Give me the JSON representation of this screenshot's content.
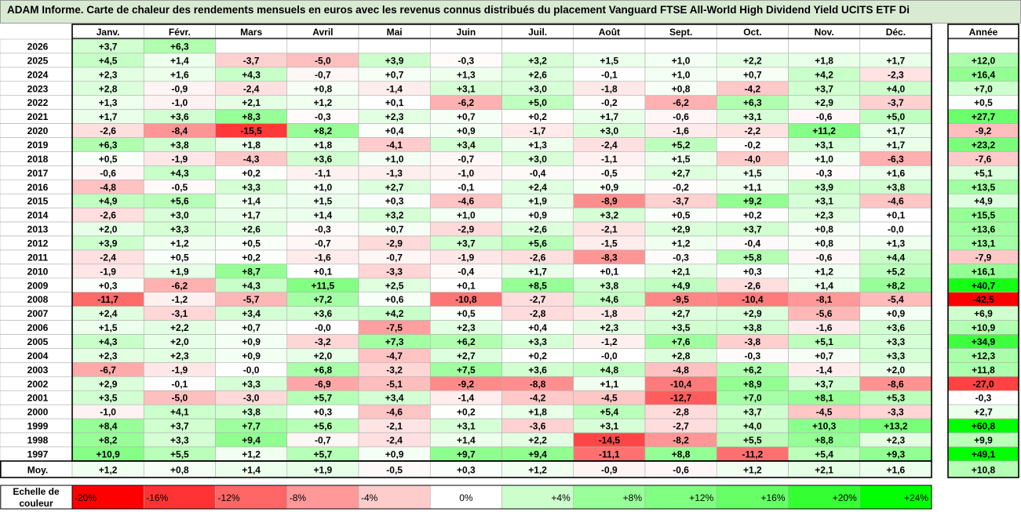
{
  "title": "ADAM Informe. Carte de chaleur des rendements mensuels en euros avec les revenus connus distribués du placement Vanguard FTSE All-World High Dividend Yield UCITS ETF Di",
  "chart_data": {
    "type": "heatmap",
    "columns": [
      "Janv.",
      "Févr.",
      "Mars",
      "Avril",
      "Mai",
      "Juin",
      "Juil.",
      "Août",
      "Sept.",
      "Oct.",
      "Nov.",
      "Déc."
    ],
    "annual_header": "Année",
    "rows": [
      {
        "year": "2026",
        "months": [
          "+3,7",
          "+6,3",
          "",
          "",
          "",
          "",
          "",
          "",
          "",
          "",
          "",
          ""
        ],
        "annual": ""
      },
      {
        "year": "2025",
        "months": [
          "+4,5",
          "+1,4",
          "-3,7",
          "-5,0",
          "+3,9",
          "-0,3",
          "+3,2",
          "+1,5",
          "+1,0",
          "+2,2",
          "+1,8",
          "+1,7"
        ],
        "annual": "+12,0"
      },
      {
        "year": "2024",
        "months": [
          "+2,3",
          "+1,6",
          "+4,3",
          "-0,7",
          "+0,7",
          "+1,3",
          "+2,6",
          "-0,1",
          "+1,0",
          "+0,7",
          "+4,2",
          "-2,3"
        ],
        "annual": "+16,4"
      },
      {
        "year": "2023",
        "months": [
          "+2,8",
          "-0,9",
          "-2,4",
          "+0,8",
          "-1,4",
          "+3,1",
          "+3,0",
          "-1,8",
          "+0,8",
          "-4,2",
          "+3,7",
          "+4,0"
        ],
        "annual": "+7,0"
      },
      {
        "year": "2022",
        "months": [
          "+1,3",
          "-1,0",
          "+2,1",
          "+1,2",
          "+0,1",
          "-6,2",
          "+5,0",
          "-0,2",
          "-6,2",
          "+6,3",
          "+2,9",
          "-3,7"
        ],
        "annual": "+0,5"
      },
      {
        "year": "2021",
        "months": [
          "+1,7",
          "+3,6",
          "+8,3",
          "-0,3",
          "+2,3",
          "+0,7",
          "+0,2",
          "+1,7",
          "-0,6",
          "+3,1",
          "-0,6",
          "+5,0"
        ],
        "annual": "+27,7"
      },
      {
        "year": "2020",
        "months": [
          "-2,6",
          "-8,4",
          "-15,5",
          "+8,2",
          "+0,4",
          "+0,9",
          "-1,7",
          "+3,0",
          "-1,6",
          "-2,2",
          "+11,2",
          "+1,7"
        ],
        "annual": "-9,2"
      },
      {
        "year": "2019",
        "months": [
          "+6,3",
          "+3,8",
          "+1,8",
          "+1,8",
          "-4,1",
          "+3,4",
          "+1,3",
          "-2,4",
          "+5,2",
          "-0,2",
          "+3,1",
          "+1,7"
        ],
        "annual": "+23,2"
      },
      {
        "year": "2018",
        "months": [
          "+0,5",
          "-1,9",
          "-4,3",
          "+3,6",
          "+1,0",
          "-0,7",
          "+3,0",
          "-1,1",
          "+1,5",
          "-4,0",
          "+1,0",
          "-6,3"
        ],
        "annual": "-7,6"
      },
      {
        "year": "2017",
        "months": [
          "-0,6",
          "+4,3",
          "+0,2",
          "-1,1",
          "-1,3",
          "-1,0",
          "-0,4",
          "-0,5",
          "+2,7",
          "+1,5",
          "-0,3",
          "+1,6"
        ],
        "annual": "+5,1"
      },
      {
        "year": "2016",
        "months": [
          "-4,8",
          "-0,5",
          "+3,3",
          "+1,0",
          "+2,7",
          "-0,1",
          "+2,4",
          "+0,9",
          "-0,2",
          "+1,1",
          "+3,9",
          "+3,8"
        ],
        "annual": "+13,5"
      },
      {
        "year": "2015",
        "months": [
          "+4,9",
          "+5,6",
          "+1,4",
          "+1,5",
          "+0,3",
          "-4,6",
          "+1,9",
          "-8,9",
          "-3,7",
          "+9,2",
          "+3,1",
          "-4,6"
        ],
        "annual": "+4,9"
      },
      {
        "year": "2014",
        "months": [
          "-2,6",
          "+3,0",
          "+1,7",
          "+1,4",
          "+3,2",
          "+1,0",
          "+0,9",
          "+3,2",
          "+0,5",
          "+0,2",
          "+2,3",
          "+0,1"
        ],
        "annual": "+15,5"
      },
      {
        "year": "2013",
        "months": [
          "+2,0",
          "+3,3",
          "+2,6",
          "-0,3",
          "+0,7",
          "-2,9",
          "+2,6",
          "-2,1",
          "+2,9",
          "+3,7",
          "+0,8",
          "-0,0"
        ],
        "annual": "+13,6"
      },
      {
        "year": "2012",
        "months": [
          "+3,9",
          "+1,2",
          "+0,5",
          "-0,7",
          "-2,9",
          "+3,7",
          "+5,6",
          "-1,5",
          "+1,2",
          "-0,4",
          "+0,8",
          "+1,3"
        ],
        "annual": "+13,1"
      },
      {
        "year": "2011",
        "months": [
          "-2,4",
          "+0,5",
          "+0,2",
          "-1,6",
          "-0,7",
          "-1,9",
          "-2,6",
          "-8,3",
          "-0,3",
          "+5,8",
          "-0,6",
          "+4,4"
        ],
        "annual": "-7,9"
      },
      {
        "year": "2010",
        "months": [
          "-1,9",
          "+1,9",
          "+8,7",
          "+0,1",
          "-3,3",
          "-0,4",
          "+1,7",
          "+0,1",
          "+2,1",
          "+0,3",
          "+1,2",
          "+5,2"
        ],
        "annual": "+16,1"
      },
      {
        "year": "2009",
        "months": [
          "+0,3",
          "-6,2",
          "+4,3",
          "+11,5",
          "+2,5",
          "+0,1",
          "+8,5",
          "+3,8",
          "+4,9",
          "-2,6",
          "+1,4",
          "+8,2"
        ],
        "annual": "+40,7"
      },
      {
        "year": "2008",
        "months": [
          "-11,7",
          "-1,2",
          "-5,7",
          "+7,2",
          "+0,6",
          "-10,8",
          "-2,7",
          "+4,6",
          "-9,5",
          "-10,4",
          "-8,1",
          "-5,4"
        ],
        "annual": "-42,5"
      },
      {
        "year": "2007",
        "months": [
          "+2,4",
          "-3,1",
          "+3,4",
          "+3,6",
          "+4,2",
          "+0,5",
          "-2,8",
          "-1,8",
          "+2,7",
          "+2,9",
          "-5,6",
          "+0,9"
        ],
        "annual": "+6,9"
      },
      {
        "year": "2006",
        "months": [
          "+1,5",
          "+2,2",
          "+0,7",
          "-0,0",
          "-7,5",
          "+2,3",
          "+0,4",
          "+2,3",
          "+3,5",
          "+3,8",
          "-1,6",
          "+3,6"
        ],
        "annual": "+10,9"
      },
      {
        "year": "2005",
        "months": [
          "+4,3",
          "+2,0",
          "+0,9",
          "-3,2",
          "+7,3",
          "+6,2",
          "+3,3",
          "-1,2",
          "+7,6",
          "-3,8",
          "+5,1",
          "+3,3"
        ],
        "annual": "+34,9"
      },
      {
        "year": "2004",
        "months": [
          "+2,3",
          "+2,3",
          "+0,9",
          "+2,0",
          "-4,7",
          "+2,7",
          "+0,2",
          "-0,0",
          "+2,8",
          "-0,3",
          "+0,7",
          "+3,3"
        ],
        "annual": "+12,3"
      },
      {
        "year": "2003",
        "months": [
          "-6,7",
          "-1,9",
          "-0,0",
          "+6,8",
          "-3,2",
          "+7,5",
          "+3,6",
          "+4,8",
          "-4,8",
          "+6,2",
          "-1,4",
          "+2,0"
        ],
        "annual": "+11,8"
      },
      {
        "year": "2002",
        "months": [
          "+2,9",
          "-0,1",
          "+3,3",
          "-6,9",
          "-5,1",
          "-9,2",
          "-8,8",
          "+1,1",
          "-10,4",
          "+8,9",
          "+3,7",
          "-8,6"
        ],
        "annual": "-27,0"
      },
      {
        "year": "2001",
        "months": [
          "+3,5",
          "-5,0",
          "-3,0",
          "+5,7",
          "+3,4",
          "-1,4",
          "-4,2",
          "-4,5",
          "-12,7",
          "+7,0",
          "+8,1",
          "+5,3"
        ],
        "annual": "-0,3"
      },
      {
        "year": "2000",
        "months": [
          "-1,0",
          "+4,1",
          "+3,8",
          "+0,3",
          "-4,6",
          "+0,2",
          "+1,8",
          "+5,4",
          "-2,8",
          "+3,7",
          "-4,5",
          "-3,3"
        ],
        "annual": "+2,7"
      },
      {
        "year": "1999",
        "months": [
          "+8,4",
          "+3,7",
          "+7,7",
          "+5,6",
          "-2,1",
          "+3,1",
          "-3,6",
          "+3,1",
          "-2,7",
          "+4,0",
          "+10,3",
          "+13,2"
        ],
        "annual": "+60,8"
      },
      {
        "year": "1998",
        "months": [
          "+8,2",
          "+3,3",
          "+9,4",
          "-0,7",
          "-2,4",
          "+1,4",
          "+2,2",
          "-14,5",
          "-8,2",
          "+5,5",
          "+8,8",
          "+2,3"
        ],
        "annual": "+9,9"
      },
      {
        "year": "1997",
        "months": [
          "+10,9",
          "+5,5",
          "+1,2",
          "+5,7",
          "+0,9",
          "+9,7",
          "+9,4",
          "-11,1",
          "+8,8",
          "-11,2",
          "+5,4",
          "+9,3"
        ],
        "annual": "+49,1"
      }
    ],
    "average": {
      "label": "Moy.",
      "months": [
        "+1,2",
        "+0,8",
        "+1,4",
        "+1,9",
        "-0,5",
        "+0,3",
        "+1,2",
        "-0,9",
        "-0,6",
        "+1,2",
        "+2,1",
        "+1,6"
      ],
      "annual": "+10,8"
    },
    "scale": {
      "label_line1": "Echelle de",
      "label_line2": "couleur",
      "stops": [
        {
          "label": "-20%",
          "value": -20,
          "color": "#ff0000"
        },
        {
          "label": "-16%",
          "value": -16,
          "color": "#ff3333"
        },
        {
          "label": "-12%",
          "value": -12,
          "color": "#ff6666"
        },
        {
          "label": "-8%",
          "value": -8,
          "color": "#ff9999"
        },
        {
          "label": "-4%",
          "value": -4,
          "color": "#ffcccc"
        },
        {
          "label": "0%",
          "value": 0,
          "color": "#ffffff"
        },
        {
          "label": "+4%",
          "value": 4,
          "color": "#ccffcc"
        },
        {
          "label": "+8%",
          "value": 8,
          "color": "#99ff99"
        },
        {
          "label": "+12%",
          "value": 12,
          "color": "#80ff80"
        },
        {
          "label": "+16%",
          "value": 16,
          "color": "#66ff66"
        },
        {
          "label": "+20%",
          "value": 20,
          "color": "#33ff33"
        },
        {
          "label": "+24%",
          "value": 24,
          "color": "#00ff00"
        }
      ]
    }
  }
}
